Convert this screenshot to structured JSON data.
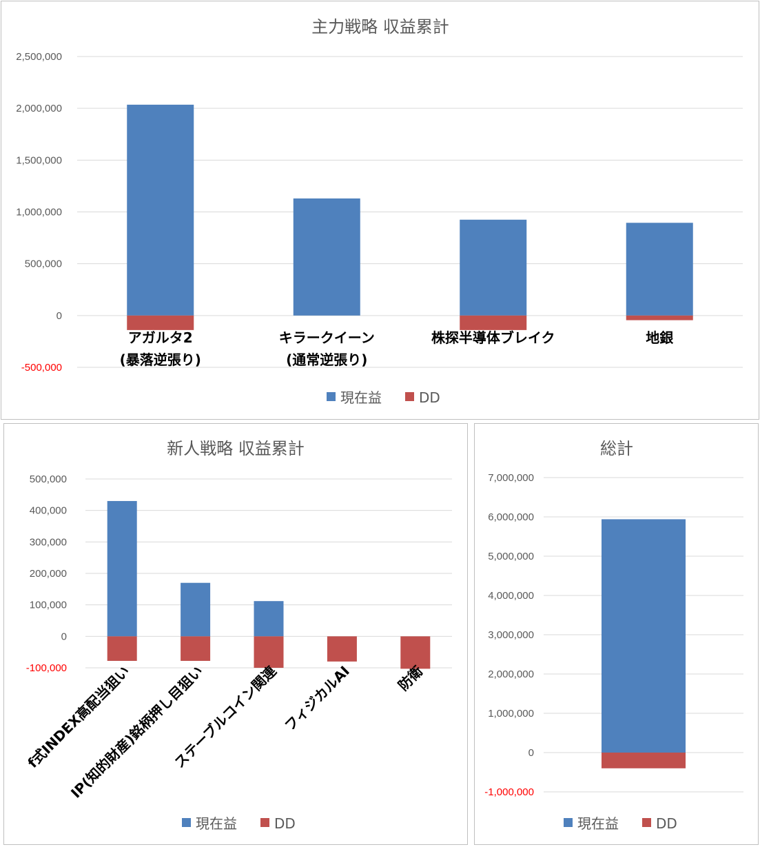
{
  "colors": {
    "profit": "#4f81bd",
    "dd": "#c0504d",
    "grid": "#d9d9d9",
    "axis_text": "#595959",
    "negative_tick": "#ff0000"
  },
  "chart_data": [
    {
      "id": "main",
      "type": "bar",
      "stacked": true,
      "title": "主力戦略 収益累計",
      "categories": [
        [
          "アガルタ2",
          "(暴落逆張り)"
        ],
        [
          "キラークイーン",
          "(通常逆張り)"
        ],
        [
          "株探半導体ブレイク"
        ],
        [
          "地銀"
        ]
      ],
      "series": [
        {
          "name": "現在益",
          "values": [
            2035000,
            1130000,
            925000,
            895000
          ]
        },
        {
          "name": "DD",
          "values": [
            -140000,
            0,
            -140000,
            -45000
          ]
        }
      ],
      "yticks": [
        "-500,000",
        "0",
        "500,000",
        "1,000,000",
        "1,500,000",
        "2,000,000",
        "2,500,000"
      ],
      "ylim": [
        -500000,
        2500000
      ],
      "ystep": 500000,
      "grid": true,
      "legend": "bottom"
    },
    {
      "id": "new",
      "type": "bar",
      "stacked": true,
      "title": "新人戦略 収益累計",
      "categories": [
        [
          "f式INDEX高配当狙い"
        ],
        [
          "IP(知的財産)銘柄押し目狙い"
        ],
        [
          "ステーブルコイン関連"
        ],
        [
          "フィジカルAI"
        ],
        [
          "防衛"
        ]
      ],
      "series": [
        {
          "name": "現在益",
          "values": [
            430000,
            170000,
            112000,
            0,
            0
          ]
        },
        {
          "name": "DD",
          "values": [
            -78000,
            -78000,
            -100000,
            -80000,
            -103000
          ]
        }
      ],
      "yticks": [
        "-100,000",
        "0",
        "100,000",
        "200,000",
        "300,000",
        "400,000",
        "500,000"
      ],
      "ylim": [
        -100000,
        500000
      ],
      "ystep": 100000,
      "grid": true,
      "legend": "bottom"
    },
    {
      "id": "total",
      "type": "bar",
      "stacked": true,
      "title": "総計",
      "categories": [
        [
          ""
        ]
      ],
      "series": [
        {
          "name": "現在益",
          "values": [
            5940000
          ]
        },
        {
          "name": "DD",
          "values": [
            -400000
          ]
        }
      ],
      "yticks": [
        "-1,000,000",
        "0",
        "1,000,000",
        "2,000,000",
        "3,000,000",
        "4,000,000",
        "5,000,000",
        "6,000,000",
        "7,000,000"
      ],
      "ylim": [
        -1000000,
        7000000
      ],
      "ystep": 1000000,
      "grid": true,
      "legend": "bottom"
    }
  ]
}
